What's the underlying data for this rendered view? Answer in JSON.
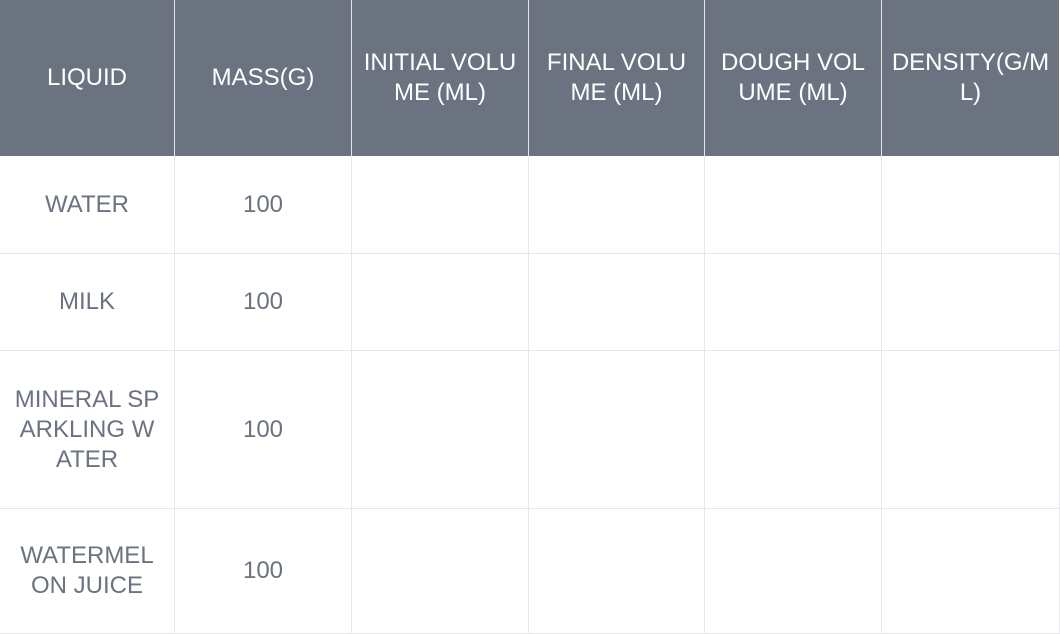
{
  "table": {
    "headers": [
      "LIQUID",
      "MASS(G)",
      "INITIAL VOLUME (ML)",
      "FINAL VOLUME (ML)",
      "DOUGH VOLUME (ML)",
      "DENSITY(G/ML)"
    ],
    "rows": [
      [
        "WATER",
        "100",
        "",
        "",
        "",
        ""
      ],
      [
        "MILK",
        "100",
        "",
        "",
        "",
        ""
      ],
      [
        "MINERAL SPARKLING WATER",
        "100",
        "",
        "",
        "",
        ""
      ],
      [
        "WATERMELON JUICE",
        "100",
        "",
        "",
        "",
        ""
      ]
    ]
  }
}
